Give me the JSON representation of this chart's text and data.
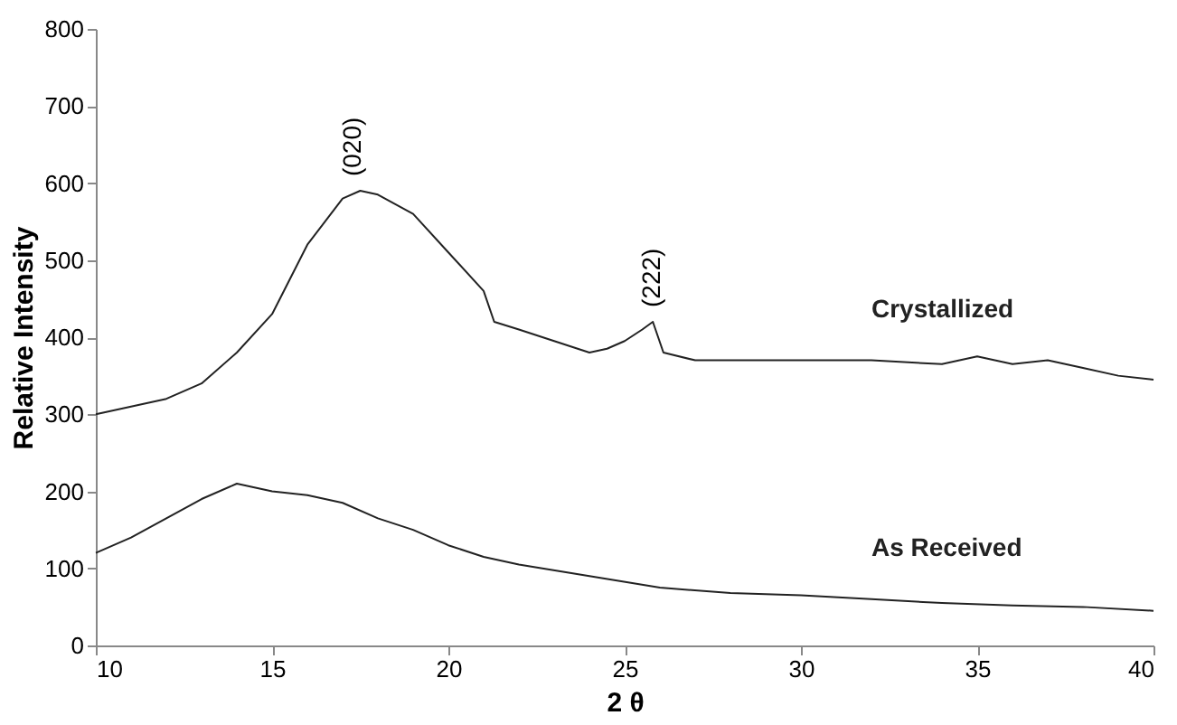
{
  "chart_data": {
    "type": "line",
    "xlabel": "2 θ",
    "ylabel": "Relative Intensity",
    "xlim": [
      10,
      40
    ],
    "ylim": [
      0,
      800
    ],
    "xticks": [
      10,
      15,
      20,
      25,
      30,
      35,
      40
    ],
    "yticks": [
      0,
      100,
      200,
      300,
      400,
      500,
      600,
      700,
      800
    ],
    "grid": false,
    "legend": false,
    "marker": "none",
    "line_style": "solid",
    "series": [
      {
        "name": "Crystallized",
        "color": "#222222",
        "x": [
          10,
          11,
          12,
          13,
          14,
          15,
          16,
          17,
          17.5,
          18,
          19,
          20,
          21,
          21.3,
          22,
          23,
          24,
          24.5,
          25,
          25.5,
          25.8,
          26.1,
          27,
          28,
          30,
          32,
          34,
          35,
          36,
          37,
          38,
          39,
          40
        ],
        "values": [
          300,
          310,
          320,
          340,
          380,
          430,
          520,
          580,
          590,
          585,
          560,
          510,
          460,
          420,
          410,
          395,
          380,
          385,
          395,
          410,
          420,
          380,
          370,
          370,
          370,
          370,
          365,
          375,
          365,
          370,
          360,
          350,
          345
        ]
      },
      {
        "name": "As Received",
        "color": "#222222",
        "x": [
          10,
          11,
          12,
          13,
          14,
          15,
          16,
          17,
          18,
          19,
          20,
          21,
          22,
          24,
          26,
          28,
          30,
          32,
          34,
          36,
          38,
          40
        ],
        "values": [
          120,
          140,
          165,
          190,
          210,
          200,
          195,
          185,
          165,
          150,
          130,
          115,
          105,
          90,
          75,
          68,
          65,
          60,
          55,
          52,
          50,
          45
        ]
      }
    ],
    "annotations": [
      {
        "text": "(020)",
        "x": 17.3,
        "y": 590
      },
      {
        "text": "(222)",
        "x": 25.8,
        "y": 420
      }
    ]
  }
}
